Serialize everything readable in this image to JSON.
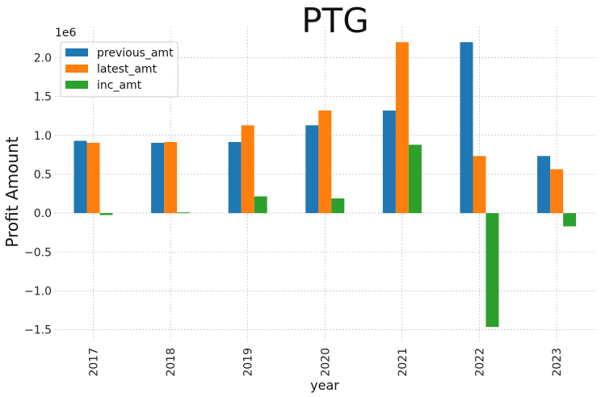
{
  "chart_data": {
    "type": "bar",
    "title": "PTG",
    "xlabel": "year",
    "ylabel": "Profit Amount",
    "y_offset_label": "1e6",
    "categories": [
      "2017",
      "2018",
      "2019",
      "2020",
      "2021",
      "2022",
      "2023"
    ],
    "series": [
      {
        "name": "previous_amt",
        "color": "#1f77b4",
        "values": [
          930000,
          905000,
          915000,
          1130000,
          1320000,
          2200000,
          735000
        ]
      },
      {
        "name": "latest_amt",
        "color": "#ff7f0e",
        "values": [
          905000,
          915000,
          1130000,
          1320000,
          2200000,
          735000,
          565000
        ]
      },
      {
        "name": "inc_amt",
        "color": "#2ca02c",
        "values": [
          -25000,
          10000,
          215000,
          190000,
          880000,
          -1465000,
          -170000
        ]
      }
    ],
    "ylim": [
      -1650000,
      2400000
    ],
    "yticks": [
      -1500000,
      -1000000,
      -500000,
      0,
      500000,
      1000000,
      1500000,
      2000000
    ],
    "ytick_labels": [
      "−1.5",
      "−1.0",
      "−0.5",
      "0.0",
      "0.5",
      "1.0",
      "1.5",
      "2.0"
    ],
    "grid": true,
    "legend_position": "top-left"
  }
}
